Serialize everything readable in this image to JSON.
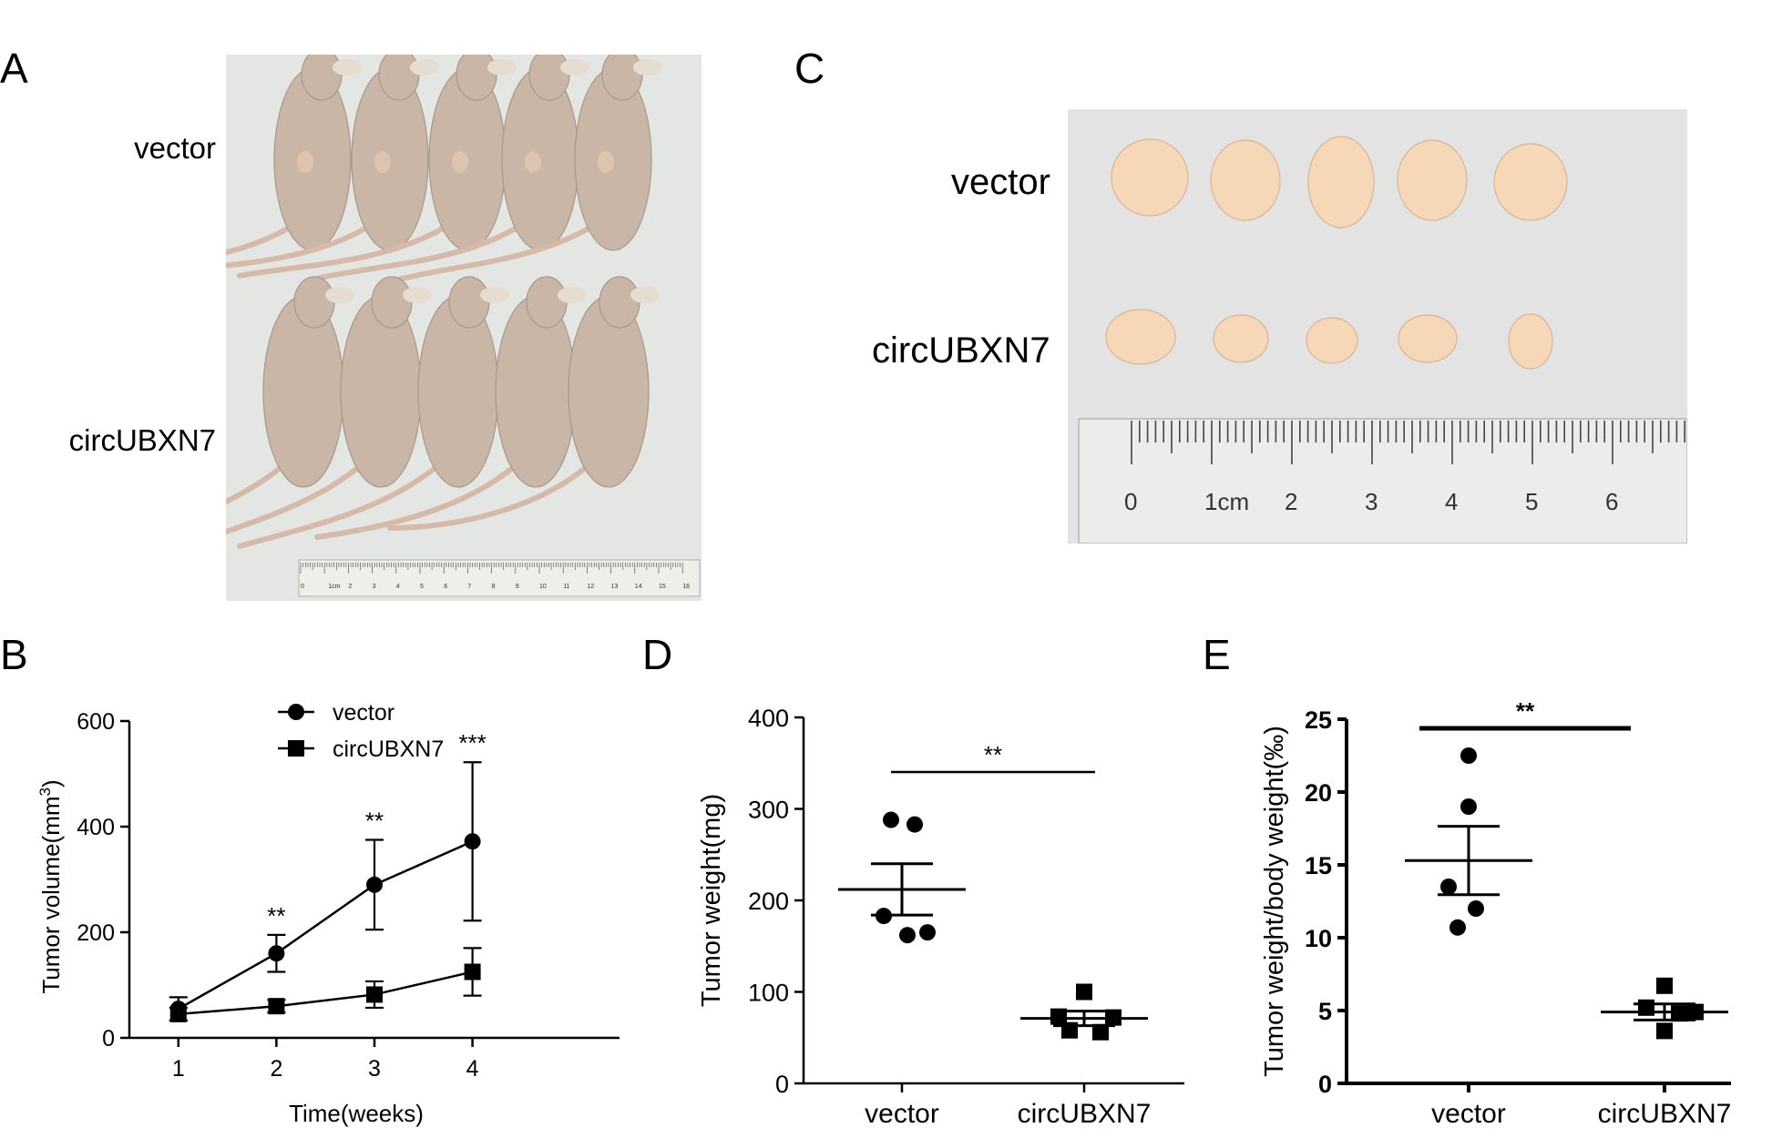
{
  "panels": {
    "A": {
      "letter": "A",
      "group_labels": [
        "vector",
        "circUBXN7"
      ],
      "ruler_ticks": [
        "0",
        "1cm",
        "2",
        "3",
        "4",
        "5",
        "6",
        "7",
        "8",
        "9",
        "10",
        "11",
        "12",
        "13",
        "14",
        "15",
        "16"
      ]
    },
    "C": {
      "letter": "C",
      "group_labels": [
        "vector",
        "circUBXN7"
      ],
      "ruler_ticks": [
        "0",
        "1cm",
        "2",
        "3",
        "4",
        "5",
        "6"
      ]
    },
    "B": {
      "letter": "B"
    },
    "D": {
      "letter": "D"
    },
    "E": {
      "letter": "E"
    }
  },
  "colors": {
    "ink": "#000000",
    "photo_bg": "#e4e6e4",
    "mouse_skin": "#c9b6a6",
    "tumor": "#f6d8b8",
    "ruler": "#efefe9"
  },
  "chart_data": [
    {
      "panel": "B",
      "type": "line",
      "xlabel": "Time(weeks)",
      "ylabel": "Tumor volume(mm",
      "ylabel_sup": "3",
      "ylabel_close": ")",
      "x": [
        1,
        2,
        3,
        4
      ],
      "xticks": [
        "1",
        "2",
        "3",
        "4"
      ],
      "yticks": [
        "0",
        "200",
        "400",
        "600"
      ],
      "ylim": [
        0,
        600
      ],
      "xlim": [
        0.5,
        5.5
      ],
      "legend": "top",
      "series": [
        {
          "name": "vector",
          "marker": "circle",
          "values": [
            55,
            160,
            290,
            372
          ],
          "err": [
            22,
            35,
            85,
            150
          ]
        },
        {
          "name": "circUBXN7",
          "marker": "square",
          "values": [
            45,
            60,
            82,
            125
          ],
          "err": [
            12,
            12,
            25,
            45
          ]
        }
      ],
      "annotations": [
        "",
        "**",
        "**",
        "***"
      ]
    },
    {
      "panel": "D",
      "type": "scatter",
      "ylabel": "Tumor weight(mg)",
      "categories": [
        "vector",
        "circUBXN7"
      ],
      "yticks": [
        "0",
        "100",
        "200",
        "300",
        "400"
      ],
      "ylim": [
        0,
        400
      ],
      "significance": "**",
      "groups": [
        {
          "name": "vector",
          "marker": "circle",
          "points": [
            288,
            283,
            183,
            165,
            162
          ],
          "mean": 212,
          "sem": 28
        },
        {
          "name": "circUBXN7",
          "marker": "square",
          "points": [
            100,
            73,
            72,
            58,
            56
          ],
          "mean": 71,
          "sem": 8
        }
      ]
    },
    {
      "panel": "E",
      "type": "scatter",
      "ylabel": "Tumor weight/body weight(‰)",
      "categories": [
        "vector",
        "circUBXN7"
      ],
      "yticks": [
        "0",
        "5",
        "10",
        "15",
        "20",
        "25"
      ],
      "ylim": [
        0,
        25
      ],
      "significance": "**",
      "groups": [
        {
          "name": "vector",
          "marker": "circle",
          "points": [
            22.5,
            19.0,
            13.5,
            12.0,
            10.7
          ],
          "mean": 15.3,
          "sem": 2.35
        },
        {
          "name": "circUBXN7",
          "marker": "square",
          "points": [
            6.7,
            5.2,
            4.9,
            4.8,
            3.6
          ],
          "mean": 4.9,
          "sem": 0.55
        }
      ]
    }
  ]
}
